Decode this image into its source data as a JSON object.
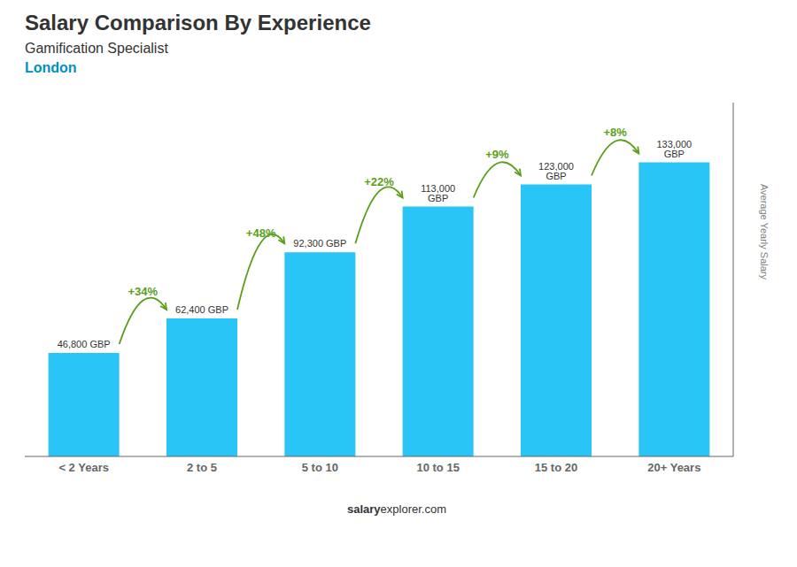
{
  "chart_data": {
    "type": "bar",
    "title": "Salary Comparison By Experience",
    "subtitle": "Gamification Specialist",
    "city": "London",
    "ylabel": "Average Yearly Salary",
    "footer": [
      "salary",
      "explorer.com"
    ],
    "categories": [
      "< 2 Years",
      "2 to 5",
      "5 to 10",
      "10 to 15",
      "15 to 20",
      "20+ Years"
    ],
    "values": [
      46800,
      62400,
      92300,
      113000,
      123000,
      133000
    ],
    "value_labels": [
      "46,800 GBP",
      "62,400 GBP",
      "92,300 GBP",
      "113,000 GBP",
      "123,000 GBP",
      "133,000 GBP"
    ],
    "data_labels": true,
    "annotations": [
      "+34%",
      "+48%",
      "+22%",
      "+9%",
      "+8%"
    ],
    "color": "#29c5f6",
    "ylim": [
      0,
      160000
    ],
    "yticks": [],
    "tick_labels": "x",
    "grid": false
  }
}
